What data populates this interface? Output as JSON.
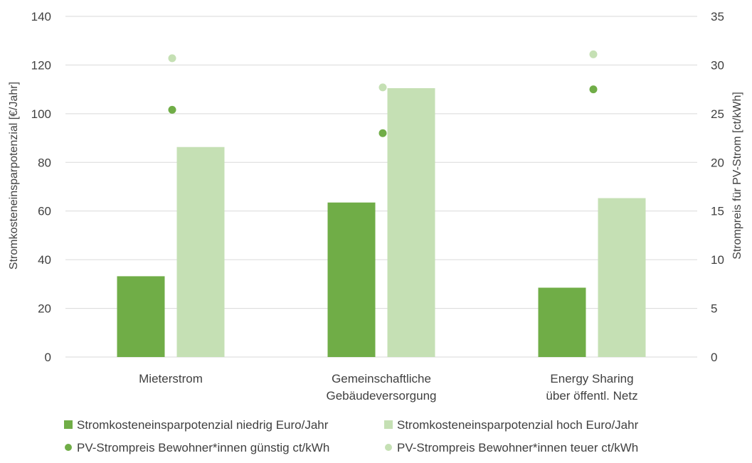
{
  "chart_data": {
    "type": "bar",
    "categories": [
      [
        "Mieterstrom"
      ],
      [
        "Gemeinschaftliche",
        "Gebäudeversorgung"
      ],
      [
        "Energy Sharing",
        "über öffentl. Netz"
      ]
    ],
    "series": [
      {
        "name": "Stromkosteneinsparpotenzial niedrig Euro/Jahr",
        "kind": "bar",
        "axis": "left",
        "color": "#70AD47",
        "values": [
          33.2,
          63.5,
          28.5
        ]
      },
      {
        "name": "Stromkosteneinsparpotenzial hoch Euro/Jahr",
        "kind": "bar",
        "axis": "left",
        "color": "#C5E0B4",
        "values": [
          86.3,
          110.5,
          65.3
        ]
      },
      {
        "name": "PV-Strompreis Bewohner*innen günstig ct/kWh",
        "kind": "scatter",
        "axis": "right",
        "color": "#70AD47",
        "values": [
          25.4,
          23.0,
          27.5
        ]
      },
      {
        "name": "PV-Strompreis Bewohner*innen teuer ct/kWh",
        "kind": "scatter",
        "axis": "right",
        "color": "#C5E0B4",
        "values": [
          30.7,
          27.7,
          31.1
        ]
      }
    ],
    "ylabel": "Stromkosteneinsparpotenzial [€/Jahr]",
    "y2label": "Strompreis für PV-Strom [ct/kWh]",
    "ylim": [
      0,
      140
    ],
    "yticks": [
      0,
      20,
      40,
      60,
      80,
      100,
      120,
      140
    ],
    "y2lim": [
      0,
      35
    ],
    "y2ticks": [
      0,
      5,
      10,
      15,
      20,
      25,
      30,
      35
    ],
    "grid": true,
    "legend_position": "bottom"
  }
}
